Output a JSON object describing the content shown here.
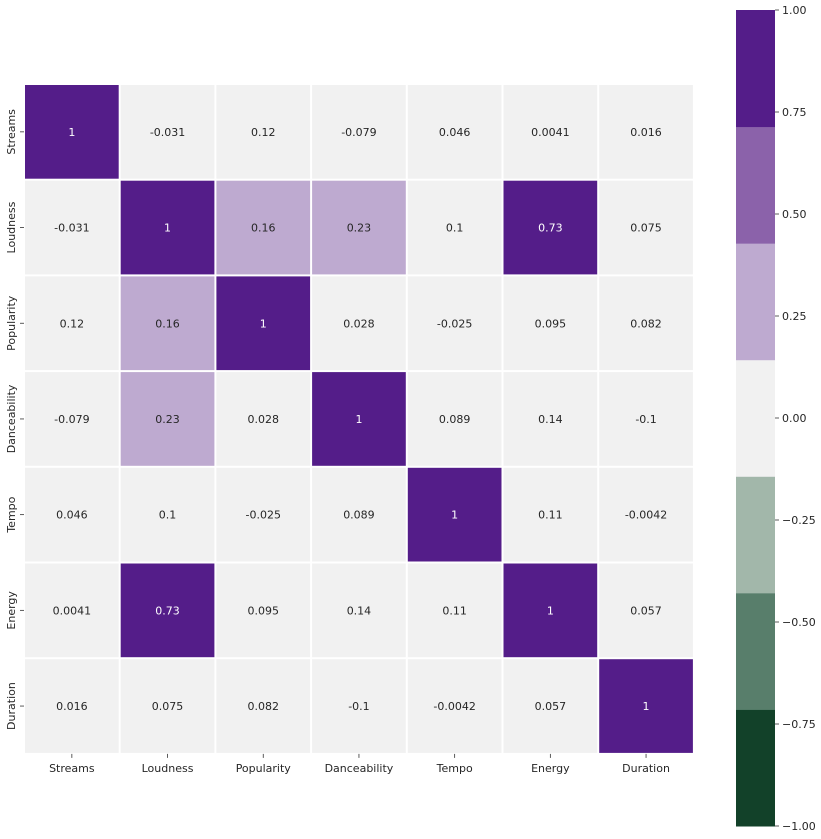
{
  "chart_data": {
    "type": "heatmap",
    "categories": [
      "Streams",
      "Loudness",
      "Popularity",
      "Danceability",
      "Tempo",
      "Energy",
      "Duration"
    ],
    "values": [
      [
        1,
        -0.031,
        0.12,
        -0.079,
        0.046,
        0.0041,
        0.016
      ],
      [
        -0.031,
        1,
        0.16,
        0.23,
        0.1,
        0.73,
        0.075
      ],
      [
        0.12,
        0.16,
        1,
        0.028,
        -0.025,
        0.095,
        0.082
      ],
      [
        -0.079,
        0.23,
        0.028,
        1,
        0.089,
        0.14,
        -0.1
      ],
      [
        0.046,
        0.1,
        -0.025,
        0.089,
        1,
        0.11,
        -0.0042
      ],
      [
        0.0041,
        0.73,
        0.095,
        0.14,
        0.11,
        1,
        0.057
      ],
      [
        0.016,
        0.075,
        0.082,
        -0.1,
        -0.0042,
        0.057,
        1
      ]
    ],
    "cell_labels": [
      [
        "1",
        "-0.031",
        "0.12",
        "-0.079",
        "0.046",
        "0.0041",
        "0.016"
      ],
      [
        "-0.031",
        "1",
        "0.16",
        "0.23",
        "0.1",
        "0.73",
        "0.075"
      ],
      [
        "0.12",
        "0.16",
        "1",
        "0.028",
        "-0.025",
        "0.095",
        "0.082"
      ],
      [
        "-0.079",
        "0.23",
        "0.028",
        "1",
        "0.089",
        "0.14",
        "-0.1"
      ],
      [
        "0.046",
        "0.1",
        "-0.025",
        "0.089",
        "1",
        "0.11",
        "-0.0042"
      ],
      [
        "0.0041",
        "0.73",
        "0.095",
        "0.14",
        "0.11",
        "1",
        "0.057"
      ],
      [
        "0.016",
        "0.075",
        "0.082",
        "-0.1",
        "-0.0042",
        "0.057",
        "1"
      ]
    ],
    "colorbar": {
      "range": [
        -1,
        1
      ],
      "tick_values": [
        -1,
        -0.75,
        -0.5,
        -0.25,
        0,
        0.25,
        0.5,
        0.75,
        1
      ],
      "tick_labels": [
        "−1.00",
        "−0.75",
        "−0.50",
        "−0.25",
        "0.00",
        "0.25",
        "0.50",
        "0.75",
        "1.00"
      ],
      "colors": [
        "#124129",
        "#587e6b",
        "#a2b7aa",
        "#f1f1f1",
        "#beaad0",
        "#8b62aa",
        "#541d89"
      ]
    },
    "text_colors": {
      "dark_cell": "#ffffff",
      "light_cell": "#262626"
    },
    "grid": false,
    "legend": "right colorbar"
  }
}
